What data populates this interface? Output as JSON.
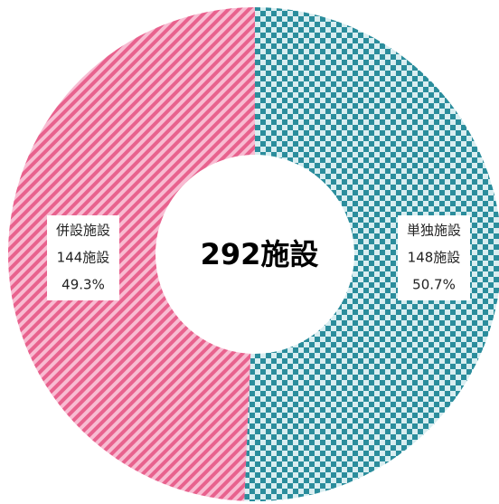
{
  "chart_data": {
    "type": "donut",
    "categories": [
      "単独施設",
      "併設施設"
    ],
    "values": [
      148,
      144
    ],
    "value_labels": [
      "148施設",
      "144施設"
    ],
    "percentage_labels": [
      "50.7%",
      "49.3%"
    ],
    "colors": [
      "#2b8d9c",
      "#e8628e"
    ],
    "center_label": "292施設"
  }
}
